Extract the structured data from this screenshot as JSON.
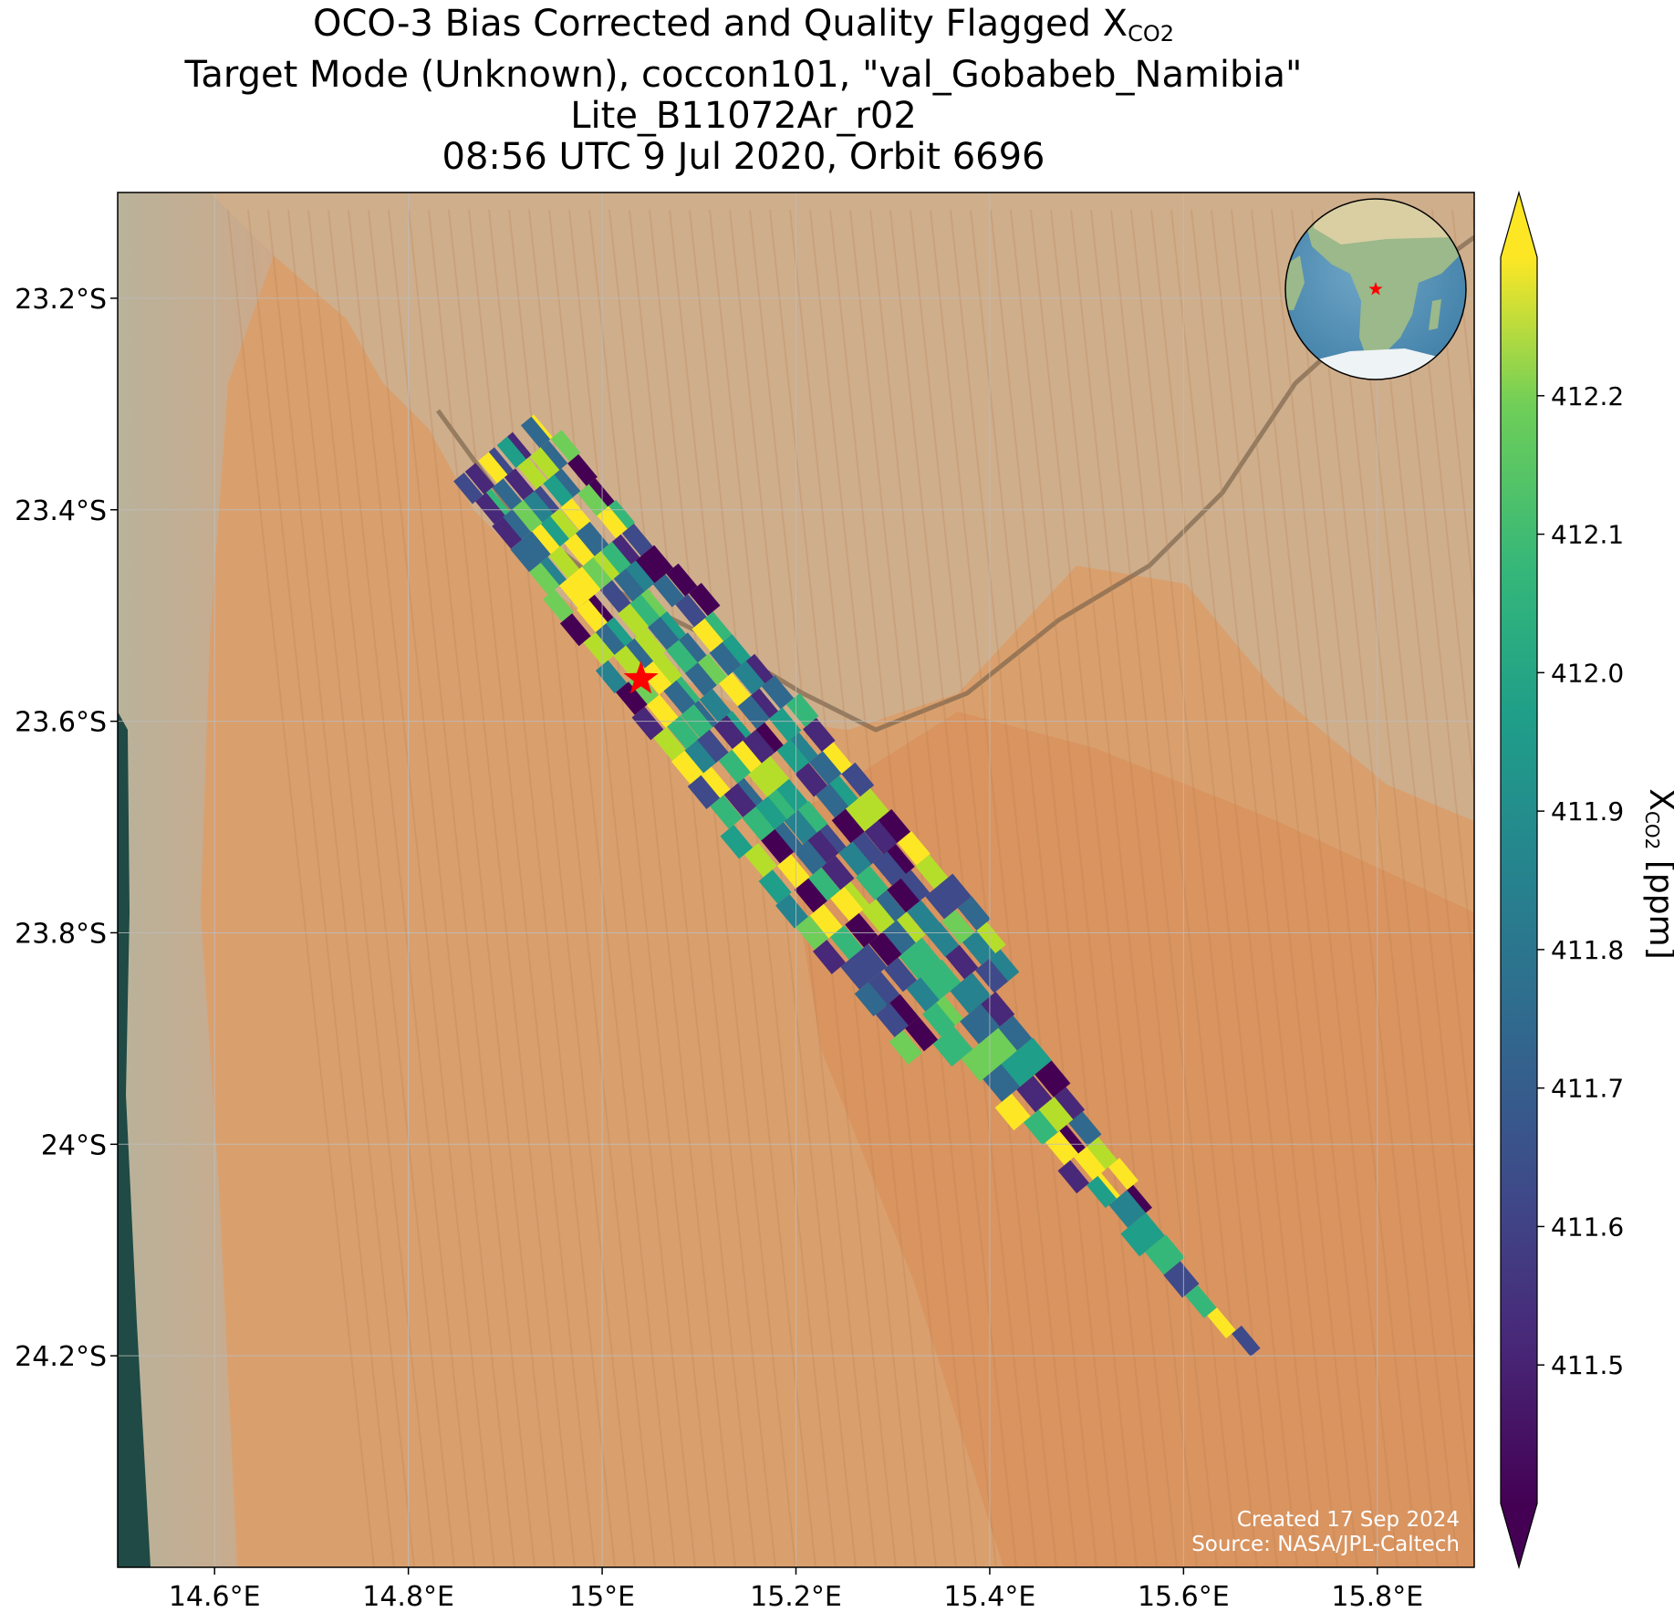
{
  "title": {
    "line1_prefix": "OCO-3 Bias Corrected and Quality Flagged X",
    "line1_sub": "CO2",
    "line2": "Target Mode (Unknown), coccon101, \"val_Gobabeb_Namibia\"",
    "line3": "Lite_B11072Ar_r02",
    "line4": "08:56 UTC 9 Jul 2020, Orbit 6696"
  },
  "map": {
    "lon_range": [
      14.5,
      15.9
    ],
    "lat_range": [
      -24.4,
      -23.1
    ],
    "lon_ticks": [
      {
        "value": 14.6,
        "label": "14.6°E"
      },
      {
        "value": 14.8,
        "label": "14.8°E"
      },
      {
        "value": 15.0,
        "label": "15°E"
      },
      {
        "value": 15.2,
        "label": "15.2°E"
      },
      {
        "value": 15.4,
        "label": "15.4°E"
      },
      {
        "value": 15.6,
        "label": "15.6°E"
      },
      {
        "value": 15.8,
        "label": "15.8°E"
      }
    ],
    "lat_ticks": [
      {
        "value": -23.2,
        "label": "23.2°S"
      },
      {
        "value": -23.4,
        "label": "23.4°S"
      },
      {
        "value": -23.6,
        "label": "23.6°S"
      },
      {
        "value": -23.8,
        "label": "23.8°S"
      },
      {
        "value": -24.0,
        "label": "24°S"
      },
      {
        "value": -24.2,
        "label": "24.2°S"
      }
    ],
    "grid": true,
    "target_site": {
      "lon": 15.04,
      "lat": -23.56,
      "marker": "red-star-icon",
      "color": "#ff0000"
    },
    "swath_extent": {
      "northwest_corner": {
        "lon": 14.89,
        "lat": -23.34
      },
      "southeast_corner": {
        "lon": 15.67,
        "lat": -24.2
      }
    },
    "inset_globe": {
      "center_region": "Southern Africa",
      "marker": "red-star-icon"
    }
  },
  "colorbar": {
    "colormap": "viridis",
    "range": [
      411.4,
      412.3
    ],
    "extend": "both",
    "ticks": [
      411.5,
      411.6,
      411.7,
      411.8,
      411.9,
      412.0,
      412.1,
      412.2
    ],
    "tick_labels": [
      "411.5",
      "411.6",
      "411.7",
      "411.8",
      "411.9",
      "412.0",
      "412.1",
      "412.2"
    ],
    "label_prefix": "X",
    "label_sub": "CO2",
    "label_suffix": " [ppm]"
  },
  "credits": {
    "created": "Created 17 Sep 2024",
    "source": "Source: NASA/JPL-Caltech"
  },
  "colors": {
    "viridis_low": "#440154",
    "viridis_mid": "#21918c",
    "viridis_high": "#fde725",
    "star": "#ff0000"
  }
}
